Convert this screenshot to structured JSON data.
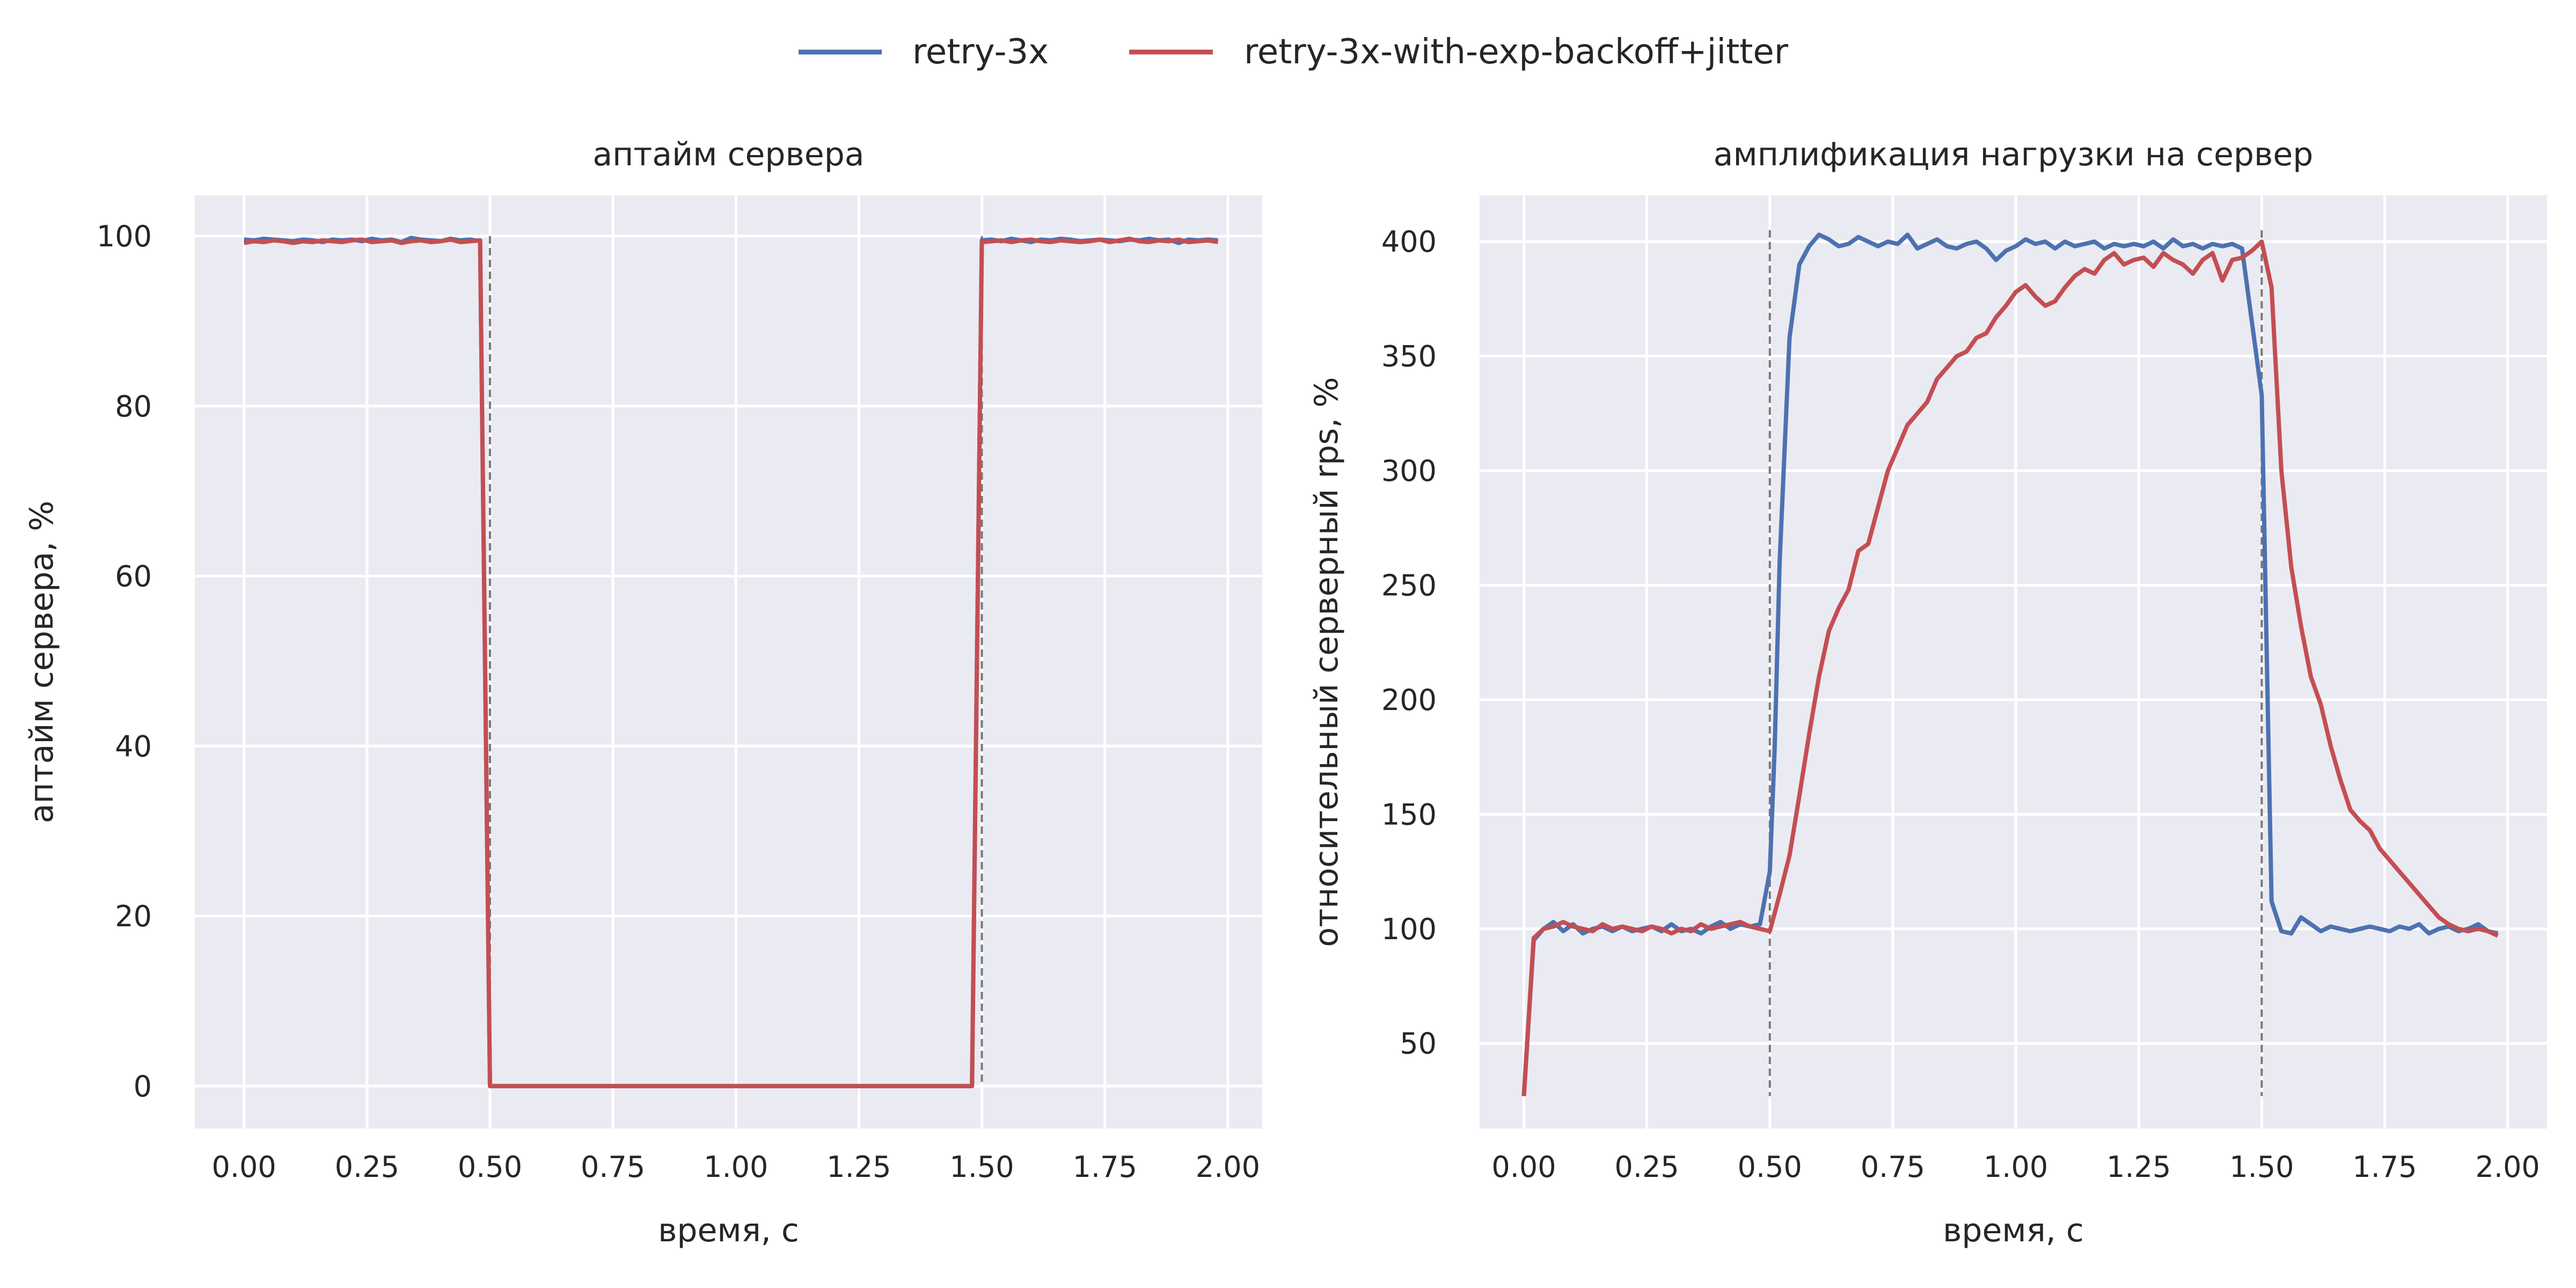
{
  "legend": [
    {
      "name": "retry-3x",
      "color": "#4c72b0"
    },
    {
      "name": "retry-3x-with-exp-backoff+jitter",
      "color": "#c44e52"
    }
  ],
  "chart_data": [
    {
      "type": "line",
      "title": "аптайм сервера",
      "xlabel": "время, с",
      "ylabel": "аптайм сервера, %",
      "xlim": [
        -0.1,
        2.07
      ],
      "ylim": [
        -5,
        104.8
      ],
      "xticks": [
        0.0,
        0.25,
        0.5,
        0.75,
        1.0,
        1.25,
        1.5,
        1.75,
        2.0
      ],
      "xtick_labels": [
        "0.00",
        "0.25",
        "0.50",
        "0.75",
        "1.00",
        "1.25",
        "1.50",
        "1.75",
        "2.00"
      ],
      "yticks": [
        0,
        20,
        40,
        60,
        80,
        100
      ],
      "ytick_labels": [
        "0",
        "20",
        "40",
        "60",
        "80",
        "100"
      ],
      "grid": true,
      "vlines": [
        0.5,
        1.5
      ],
      "series": [
        {
          "name": "retry-3x",
          "color": "#4c72b0",
          "x": [
            0.0,
            0.02,
            0.04,
            0.06,
            0.08,
            0.1,
            0.12,
            0.14,
            0.16,
            0.18,
            0.2,
            0.22,
            0.24,
            0.26,
            0.28,
            0.3,
            0.32,
            0.34,
            0.36,
            0.38,
            0.4,
            0.42,
            0.44,
            0.46,
            0.48,
            0.5,
            1.48,
            1.5,
            1.52,
            1.54,
            1.56,
            1.58,
            1.6,
            1.62,
            1.64,
            1.66,
            1.68,
            1.7,
            1.72,
            1.74,
            1.76,
            1.78,
            1.8,
            1.82,
            1.84,
            1.86,
            1.88,
            1.9,
            1.92,
            1.94,
            1.96,
            1.98
          ],
          "y": [
            99.6,
            99.5,
            99.7,
            99.6,
            99.5,
            99.4,
            99.6,
            99.5,
            99.3,
            99.6,
            99.5,
            99.6,
            99.4,
            99.7,
            99.5,
            99.6,
            99.3,
            99.8,
            99.6,
            99.5,
            99.4,
            99.7,
            99.5,
            99.6,
            99.4,
            0.0,
            0.0,
            99.5,
            99.6,
            99.4,
            99.7,
            99.5,
            99.3,
            99.6,
            99.5,
            99.7,
            99.6,
            99.4,
            99.5,
            99.6,
            99.5,
            99.4,
            99.6,
            99.5,
            99.7,
            99.5,
            99.6,
            99.2,
            99.6,
            99.5,
            99.6,
            99.5
          ]
        },
        {
          "name": "retry-3x-with-exp-backoff+jitter",
          "color": "#c44e52",
          "x": [
            0.0,
            0.02,
            0.04,
            0.06,
            0.08,
            0.1,
            0.12,
            0.14,
            0.16,
            0.18,
            0.2,
            0.22,
            0.24,
            0.26,
            0.28,
            0.3,
            0.32,
            0.34,
            0.36,
            0.38,
            0.4,
            0.42,
            0.44,
            0.46,
            0.48,
            0.5,
            1.48,
            1.5,
            1.52,
            1.54,
            1.56,
            1.58,
            1.6,
            1.62,
            1.64,
            1.66,
            1.68,
            1.7,
            1.72,
            1.74,
            1.76,
            1.78,
            1.8,
            1.82,
            1.84,
            1.86,
            1.88,
            1.9,
            1.92,
            1.94,
            1.96,
            1.98
          ],
          "y": [
            99.2,
            99.4,
            99.3,
            99.5,
            99.4,
            99.2,
            99.4,
            99.3,
            99.5,
            99.4,
            99.3,
            99.5,
            99.6,
            99.3,
            99.4,
            99.5,
            99.2,
            99.4,
            99.5,
            99.3,
            99.4,
            99.6,
            99.3,
            99.4,
            99.5,
            0.0,
            0.0,
            99.3,
            99.4,
            99.5,
            99.3,
            99.5,
            99.6,
            99.4,
            99.3,
            99.5,
            99.4,
            99.3,
            99.4,
            99.6,
            99.3,
            99.5,
            99.7,
            99.4,
            99.3,
            99.5,
            99.4,
            99.6,
            99.3,
            99.4,
            99.5,
            99.3
          ]
        }
      ]
    },
    {
      "type": "line",
      "title": "амплификация нагрузки на сервер",
      "xlabel": "время, с",
      "ylabel": "относительный серверный rps, %",
      "xlim": [
        -0.09,
        2.08
      ],
      "ylim": [
        12.8,
        420.2
      ],
      "xticks": [
        0.0,
        0.25,
        0.5,
        0.75,
        1.0,
        1.25,
        1.5,
        1.75,
        2.0
      ],
      "xtick_labels": [
        "0.00",
        "0.25",
        "0.50",
        "0.75",
        "1.00",
        "1.25",
        "1.50",
        "1.75",
        "2.00"
      ],
      "yticks": [
        50,
        100,
        150,
        200,
        250,
        300,
        350,
        400
      ],
      "ytick_labels": [
        "50",
        "100",
        "150",
        "200",
        "250",
        "300",
        "350",
        "400"
      ],
      "grid": true,
      "vlines": [
        0.5,
        1.5
      ],
      "series": [
        {
          "name": "retry-3x",
          "color": "#4c72b0",
          "x": [
            0.0,
            0.02,
            0.04,
            0.06,
            0.08,
            0.1,
            0.12,
            0.14,
            0.16,
            0.18,
            0.2,
            0.22,
            0.24,
            0.26,
            0.28,
            0.3,
            0.32,
            0.34,
            0.36,
            0.38,
            0.4,
            0.42,
            0.44,
            0.46,
            0.48,
            0.5,
            0.51,
            0.52,
            0.54,
            0.56,
            0.58,
            0.6,
            0.62,
            0.64,
            0.66,
            0.68,
            0.7,
            0.72,
            0.74,
            0.76,
            0.78,
            0.8,
            0.82,
            0.84,
            0.86,
            0.88,
            0.9,
            0.92,
            0.94,
            0.96,
            0.98,
            1.0,
            1.02,
            1.04,
            1.06,
            1.08,
            1.1,
            1.12,
            1.14,
            1.16,
            1.18,
            1.2,
            1.22,
            1.24,
            1.26,
            1.28,
            1.3,
            1.32,
            1.34,
            1.36,
            1.38,
            1.4,
            1.42,
            1.44,
            1.46,
            1.48,
            1.5,
            1.52,
            1.54,
            1.56,
            1.58,
            1.6,
            1.62,
            1.64,
            1.66,
            1.68,
            1.7,
            1.72,
            1.74,
            1.76,
            1.78,
            1.8,
            1.82,
            1.84,
            1.86,
            1.88,
            1.9,
            1.92,
            1.94,
            1.96,
            1.98
          ],
          "y": [
            27,
            95,
            100,
            103,
            99,
            102,
            98,
            100,
            101,
            99,
            101,
            99,
            100,
            101,
            99,
            102,
            99,
            100,
            98,
            101,
            103,
            100,
            102,
            101,
            102,
            125,
            180,
            260,
            358,
            390,
            398,
            403,
            401,
            398,
            399,
            402,
            400,
            398,
            400,
            399,
            403,
            397,
            399,
            401,
            398,
            397,
            399,
            400,
            397,
            392,
            396,
            398,
            401,
            399,
            400,
            397,
            400,
            398,
            399,
            400,
            397,
            399,
            398,
            399,
            398,
            400,
            397,
            401,
            398,
            399,
            397,
            399,
            398,
            399,
            397,
            365,
            333,
            112,
            99,
            98,
            105,
            102,
            99,
            101,
            100,
            99,
            100,
            101,
            100,
            99,
            101,
            100,
            102,
            98,
            100,
            101,
            99,
            100,
            102,
            99,
            98
          ]
        },
        {
          "name": "retry-3x-with-exp-backoff+jitter",
          "color": "#c44e52",
          "x": [
            0.0,
            0.02,
            0.04,
            0.06,
            0.08,
            0.1,
            0.12,
            0.14,
            0.16,
            0.18,
            0.2,
            0.22,
            0.24,
            0.26,
            0.28,
            0.3,
            0.32,
            0.34,
            0.36,
            0.38,
            0.4,
            0.42,
            0.44,
            0.46,
            0.48,
            0.5,
            0.52,
            0.54,
            0.56,
            0.58,
            0.6,
            0.62,
            0.64,
            0.66,
            0.68,
            0.7,
            0.72,
            0.74,
            0.76,
            0.78,
            0.8,
            0.82,
            0.84,
            0.86,
            0.88,
            0.9,
            0.92,
            0.94,
            0.96,
            0.98,
            1.0,
            1.02,
            1.04,
            1.06,
            1.08,
            1.1,
            1.12,
            1.14,
            1.16,
            1.18,
            1.2,
            1.22,
            1.24,
            1.26,
            1.28,
            1.3,
            1.32,
            1.34,
            1.36,
            1.38,
            1.4,
            1.42,
            1.44,
            1.46,
            1.48,
            1.5,
            1.52,
            1.54,
            1.56,
            1.58,
            1.6,
            1.62,
            1.64,
            1.66,
            1.68,
            1.7,
            1.72,
            1.74,
            1.76,
            1.78,
            1.8,
            1.82,
            1.84,
            1.86,
            1.88,
            1.9,
            1.92,
            1.94,
            1.96,
            1.98
          ],
          "y": [
            27,
            96,
            100,
            101,
            103,
            101,
            100,
            99,
            102,
            100,
            101,
            100,
            99,
            101,
            100,
            98,
            100,
            99,
            102,
            100,
            101,
            102,
            103,
            101,
            100,
            99,
            115,
            132,
            158,
            185,
            210,
            230,
            240,
            248,
            265,
            268,
            284,
            300,
            310,
            320,
            325,
            330,
            340,
            345,
            350,
            352,
            358,
            360,
            367,
            372,
            378,
            381,
            376,
            372,
            374,
            380,
            385,
            388,
            386,
            392,
            395,
            390,
            392,
            393,
            389,
            395,
            392,
            390,
            386,
            392,
            395,
            383,
            392,
            393,
            396,
            400,
            380,
            300,
            258,
            232,
            210,
            198,
            180,
            165,
            152,
            147,
            143,
            135,
            130,
            125,
            120,
            115,
            110,
            105,
            102,
            100,
            99,
            100,
            99,
            97
          ]
        }
      ]
    }
  ]
}
